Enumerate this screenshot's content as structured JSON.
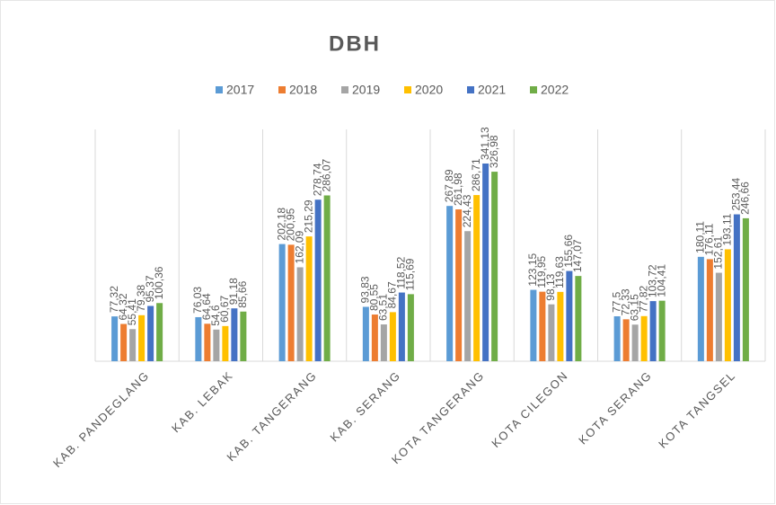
{
  "chart_data": {
    "type": "bar",
    "title": "DBH",
    "categories": [
      "KAB. PANDEGLANG",
      "KAB. LEBAK",
      "KAB. TANGERANG",
      "KAB. SERANG",
      "KOTA TANGERANG",
      "KOTA CILEGON",
      "KOTA SERANG",
      "KOTA TANGSEL"
    ],
    "series": [
      {
        "name": "2017",
        "color": "#5b9bd5",
        "values": [
          77.32,
          76.03,
          202.18,
          93.83,
          267.89,
          123.15,
          77.5,
          180.11
        ],
        "value_labels": [
          "77,32",
          "76,03",
          "202,18",
          "93,83",
          "267,89",
          "123,15",
          "77,5",
          "180,11"
        ]
      },
      {
        "name": "2018",
        "color": "#ed7d31",
        "values": [
          64.32,
          64.64,
          200.95,
          80.55,
          261.98,
          119.95,
          72.33,
          176.11
        ],
        "value_labels": [
          "64,32",
          "64,64",
          "200,95",
          "80,55",
          "261,98",
          "119,95",
          "72,33",
          "176,11"
        ]
      },
      {
        "name": "2019",
        "color": "#a5a5a5",
        "values": [
          55.41,
          54.6,
          162.09,
          63.51,
          224.43,
          98.13,
          63.15,
          152.61
        ],
        "value_labels": [
          "55,41",
          "54,6",
          "162,09",
          "63,51",
          "224,43",
          "98,13",
          "63,15",
          "152,61"
        ]
      },
      {
        "name": "2020",
        "color": "#ffc000",
        "values": [
          79.38,
          60.67,
          215.29,
          84.67,
          286.71,
          119.63,
          77.82,
          193.11
        ],
        "value_labels": [
          "79,38",
          "60,67",
          "215,29",
          "84,67",
          "286,71",
          "119,63",
          "77,82",
          "193,11"
        ]
      },
      {
        "name": "2021",
        "color": "#4472c4",
        "values": [
          95.37,
          91.18,
          278.74,
          118.52,
          341.13,
          155.66,
          103.72,
          253.44
        ],
        "value_labels": [
          "95,37",
          "91,18",
          "278,74",
          "118,52",
          "341,13",
          "155,66",
          "103,72",
          "253,44"
        ]
      },
      {
        "name": "2022",
        "color": "#70ad47",
        "values": [
          100.36,
          85.66,
          286.07,
          115.69,
          326.98,
          147.07,
          104.41,
          246.66
        ],
        "value_labels": [
          "100,36",
          "85,66",
          "286,07",
          "115,69",
          "326,98",
          "147,07",
          "104,41",
          "246,66"
        ]
      }
    ],
    "ylim": [
      0,
      400
    ]
  }
}
